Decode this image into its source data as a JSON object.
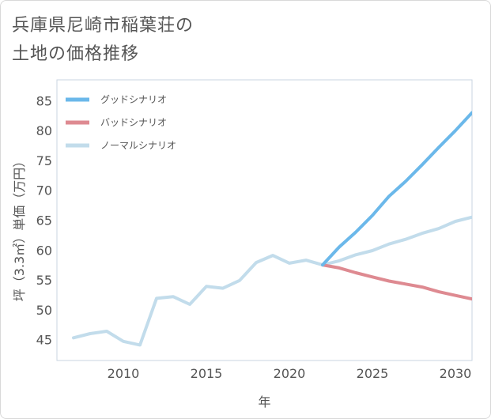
{
  "title": {
    "line1": "兵庫県尼崎市稲葉荘の",
    "line2": "土地の価格推移"
  },
  "chart_data": {
    "type": "line",
    "xlabel": "年",
    "ylabel": "坪（3.3㎡）単価（万円）",
    "xlim": [
      2006,
      2031
    ],
    "ylim": [
      41.5,
      88.5
    ],
    "xticks": [
      2010,
      2015,
      2020,
      2025,
      2030
    ],
    "yticks": [
      45,
      50,
      55,
      60,
      65,
      70,
      75,
      80,
      85
    ],
    "xtick_labels": [
      "2010",
      "2015",
      "2020",
      "2025",
      "2030"
    ],
    "ytick_labels": [
      "45",
      "50",
      "55",
      "60",
      "65",
      "70",
      "75",
      "80",
      "85"
    ],
    "legend_position": "top-left",
    "series": [
      {
        "name": "グッドシナリオ",
        "color": "#6bb8ea",
        "x": [
          2022,
          2023,
          2024,
          2025,
          2026,
          2027,
          2028,
          2029,
          2030,
          2031
        ],
        "values": [
          57.5,
          60.5,
          63.0,
          65.8,
          69.0,
          71.5,
          74.3,
          77.2,
          80.0,
          83.0
        ]
      },
      {
        "name": "バッドシナリオ",
        "color": "#de8a91",
        "x": [
          2022,
          2023,
          2024,
          2025,
          2026,
          2027,
          2028,
          2029,
          2030,
          2031
        ],
        "values": [
          57.5,
          57.0,
          56.2,
          55.5,
          54.8,
          54.3,
          53.8,
          53.0,
          52.4,
          51.8
        ]
      },
      {
        "name": "ノーマルシナリオ",
        "color": "#c2dceb",
        "x": [
          2007,
          2008,
          2009,
          2010,
          2011,
          2012,
          2013,
          2014,
          2015,
          2016,
          2017,
          2018,
          2019,
          2020,
          2021,
          2022,
          2023,
          2024,
          2025,
          2026,
          2027,
          2028,
          2029,
          2030,
          2031
        ],
        "values": [
          45.3,
          46.0,
          46.4,
          44.7,
          44.1,
          51.9,
          52.2,
          50.9,
          53.9,
          53.6,
          54.9,
          57.9,
          59.1,
          57.8,
          58.3,
          57.5,
          58.2,
          59.2,
          59.9,
          61.0,
          61.8,
          62.8,
          63.6,
          64.8,
          65.5
        ]
      }
    ]
  }
}
